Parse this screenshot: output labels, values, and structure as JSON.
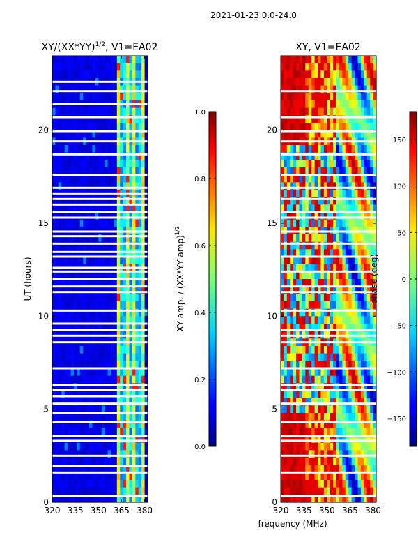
{
  "figure": {
    "suptitle": "2021-01-23 0.0-24.0",
    "xlabel": "frequency (MHz)"
  },
  "colorbars": [
    {
      "label": "XY amp. / (XX*YY amp)",
      "label_sup": "1/2",
      "ticks": [
        "0.0",
        "0.2",
        "0.4",
        "0.6",
        "0.8",
        "1.0"
      ],
      "range": [
        0.0,
        1.0
      ]
    },
    {
      "label": "phase (deg)",
      "ticks": [
        "−150",
        "−100",
        "−50",
        "0",
        "50",
        "100",
        "150"
      ],
      "range": [
        -180,
        180
      ]
    }
  ],
  "chart_data": [
    {
      "type": "heatmap",
      "title": "XY/(XX*YY)",
      "title_sup": "1/2",
      "title_suffix": ", V1=EA02",
      "ylabel": "UT (hours)",
      "x_ticks": [
        "320",
        "335",
        "350",
        "365",
        "380"
      ],
      "y_ticks": [
        "0",
        "5",
        "10",
        "15",
        "20"
      ],
      "xlim": [
        320,
        382
      ],
      "ylim": [
        0,
        24
      ],
      "colormap": "jet",
      "value": "normalized XY amplitude (0-1)",
      "description": "mostly low (~0.05) below ~362 MHz; bright vertical stripes (~0.4-0.7) between ~362 and ~380 MHz; white horizontal gaps (flagged data) at many times",
      "gaps_hours": [
        0.35,
        1.6,
        1.95,
        2.5,
        3.3,
        3.55,
        4.3,
        4.8,
        5.3,
        5.7,
        6.05,
        6.3,
        7.2,
        8.6,
        8.95,
        9.25,
        9.6,
        10.3,
        11.3,
        11.6,
        12.0,
        12.4,
        12.6,
        13.2,
        13.45,
        13.9,
        14.3,
        14.55,
        15.3,
        15.6,
        16.0,
        16.3,
        16.6,
        16.9,
        17.6,
        18.7,
        19.4,
        19.95,
        20.7,
        21.4,
        22.1,
        22.6
      ]
    },
    {
      "type": "heatmap",
      "title": "XY, V1=EA02",
      "x_ticks": [
        "320",
        "335",
        "350",
        "365",
        "380"
      ],
      "y_ticks": [
        "0",
        "5",
        "10",
        "15",
        "20"
      ],
      "xlim": [
        320,
        382
      ],
      "ylim": [
        0,
        24
      ],
      "colormap": "jet",
      "value": "XY phase (deg, -180 to 180)",
      "description": "noisy phase with red (~150 deg) regions 0-5h and 19-24h near 325-355 MHz, mixed blue/cyan 5-19h, smooth banded structure above ~357 MHz",
      "gaps_hours": [
        0.35,
        1.6,
        2.5,
        3.3,
        3.55,
        4.3,
        5.3,
        6.05,
        6.3,
        7.2,
        8.6,
        8.95,
        9.25,
        10.3,
        11.3,
        11.6,
        12.4,
        13.2,
        13.9,
        14.55,
        15.3,
        15.6,
        16.3,
        16.9,
        17.6,
        18.7,
        19.4,
        19.95,
        20.7,
        22.1
      ]
    }
  ]
}
